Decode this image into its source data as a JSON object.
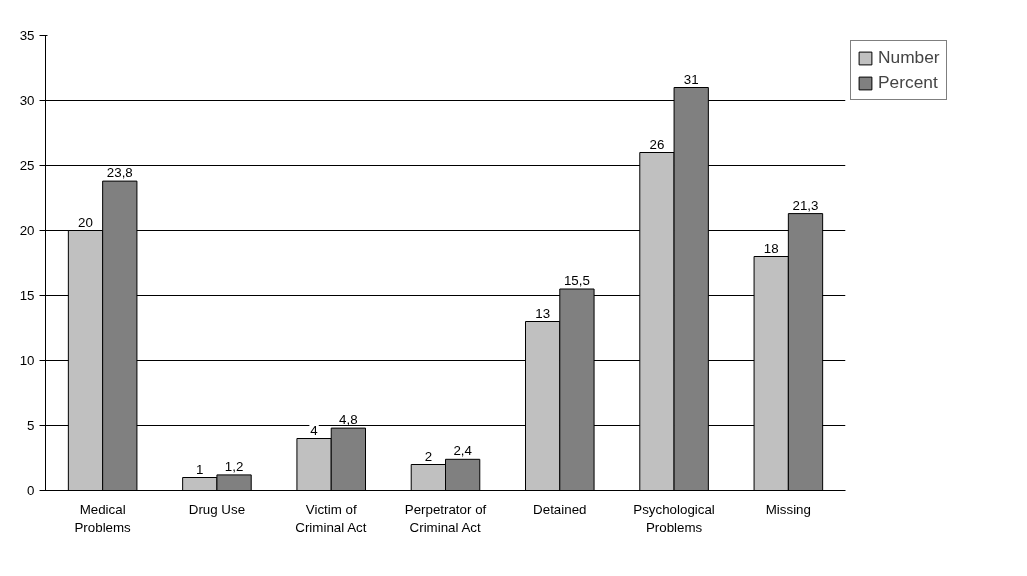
{
  "chart_data": {
    "type": "bar",
    "categories": [
      "Medical Problems",
      "Drug Use",
      "Victim of Criminal Act",
      "Perpetrator of Criminal Act",
      "Detained",
      "Psychological Problems",
      "Missing"
    ],
    "series": [
      {
        "name": "Number",
        "color": "#c0c0c0",
        "values": [
          20,
          1,
          4,
          2,
          13,
          26,
          18
        ],
        "value_labels": [
          "20",
          "1",
          "4",
          "2",
          "13",
          "26",
          "18"
        ]
      },
      {
        "name": "Percent",
        "color": "#808080",
        "values": [
          23.8,
          1.2,
          4.8,
          2.4,
          15.5,
          31,
          21.3
        ],
        "value_labels": [
          "23,8",
          "1,2",
          "4,8",
          "2,4",
          "15,5",
          "31",
          "21,3"
        ]
      }
    ],
    "ylim": [
      0,
      35
    ],
    "yticks": [
      0,
      5,
      10,
      15,
      20,
      25,
      30,
      35
    ],
    "grid": "y",
    "legend": "right"
  }
}
